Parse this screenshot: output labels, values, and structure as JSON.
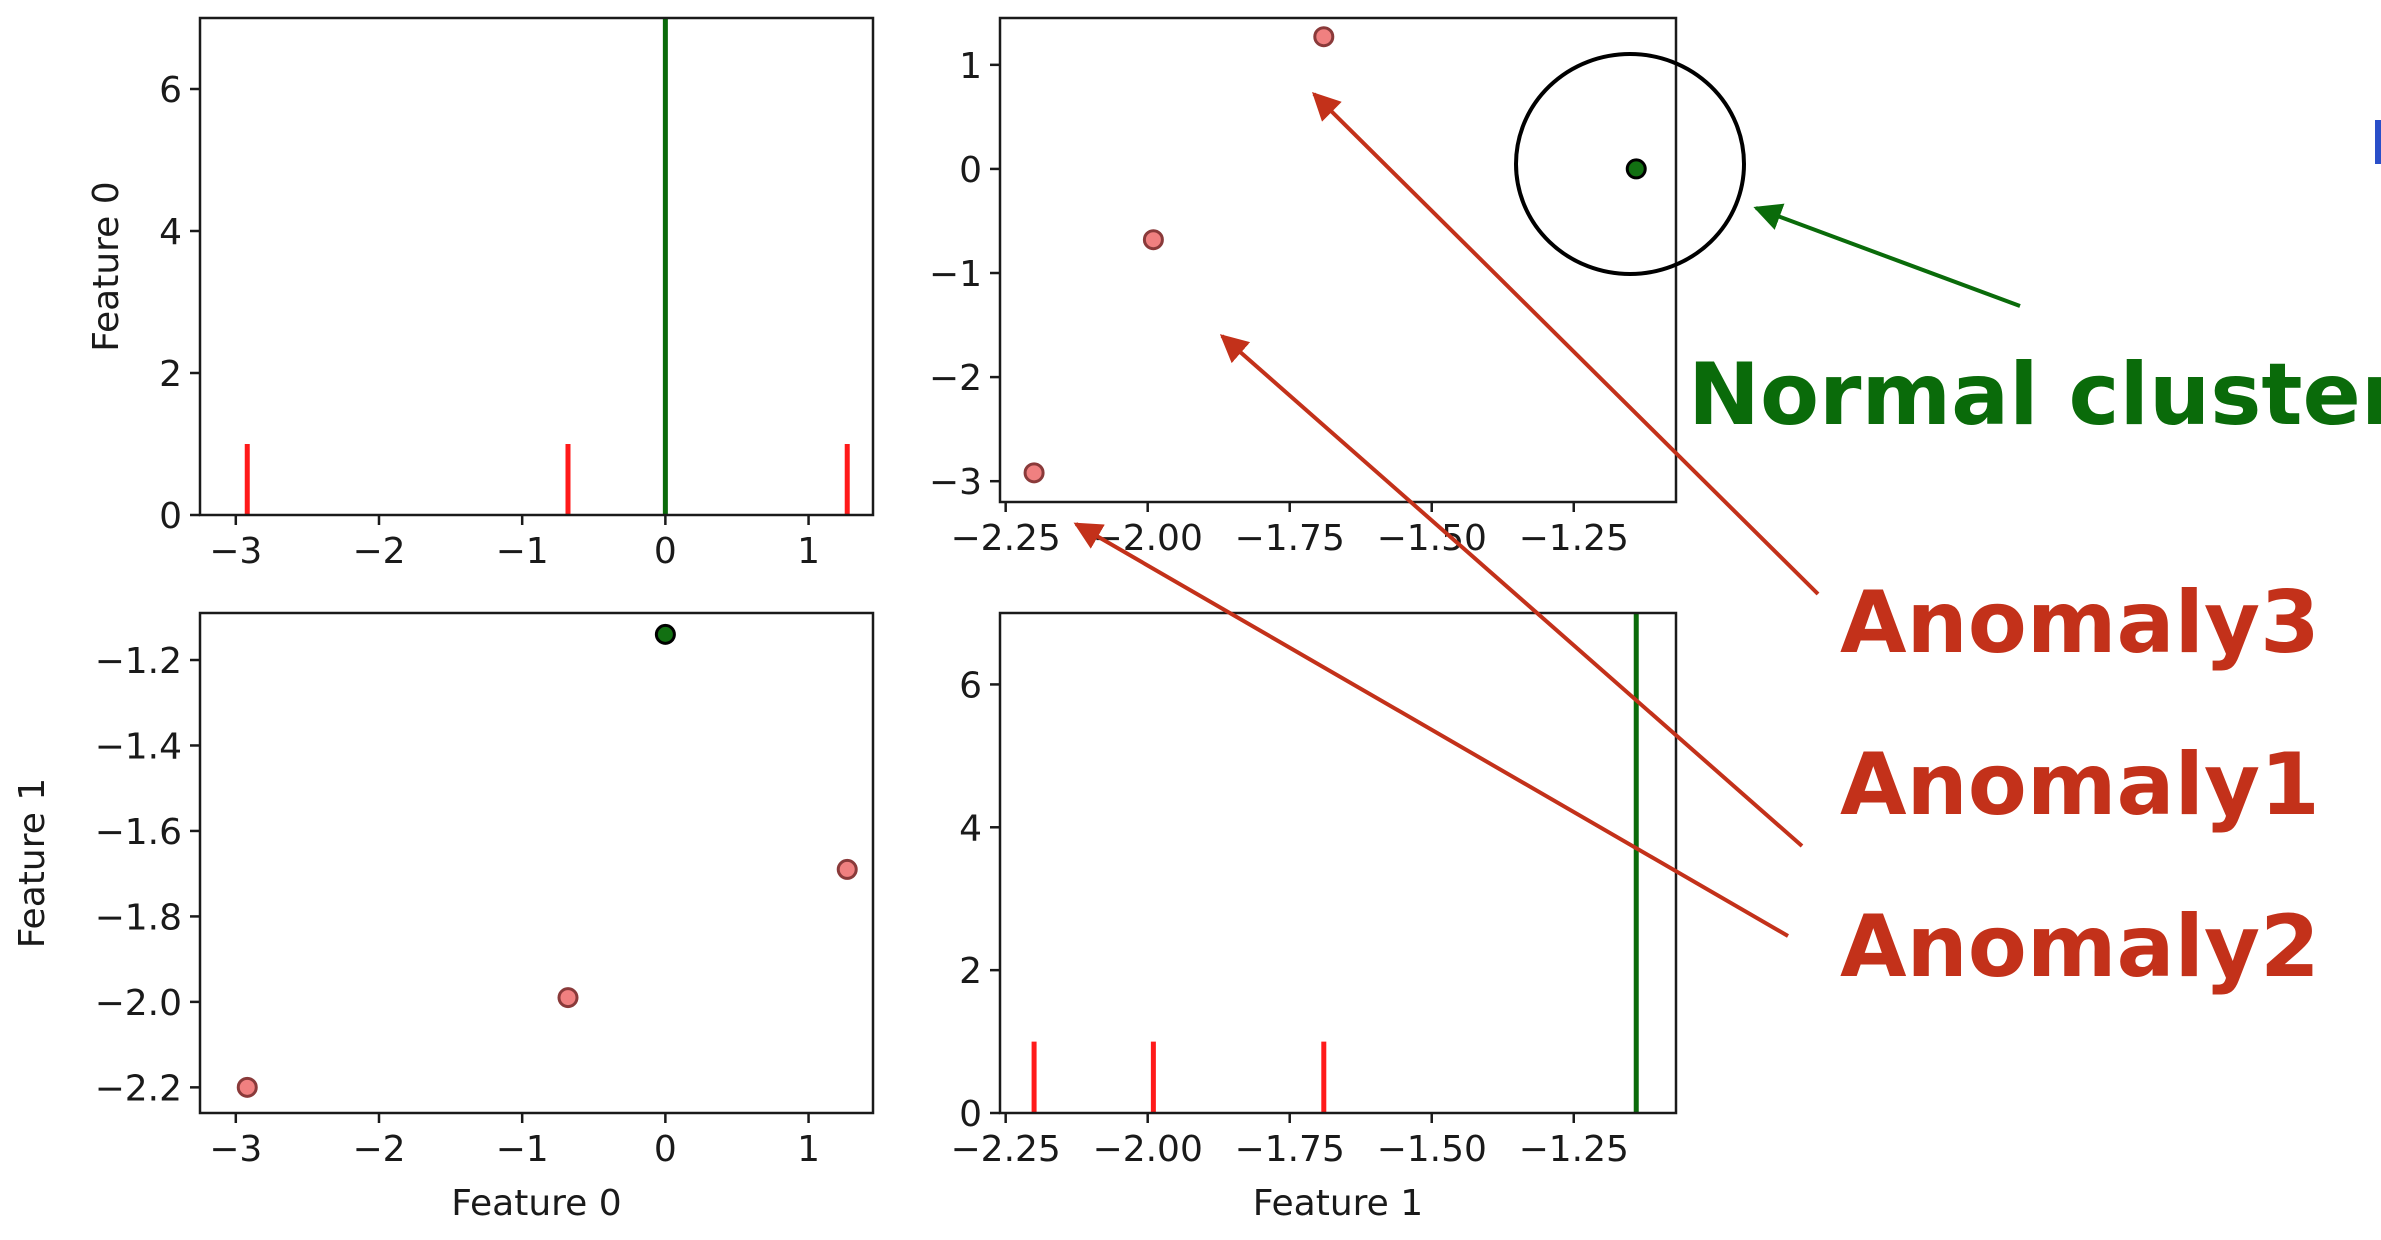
{
  "colors": {
    "normal": "#0a6b0a",
    "normal_fill": "#127012",
    "anomaly_line": "#c3311a",
    "anomaly_fill": "#f08080",
    "axis": "#1a1a1a",
    "arrow_normal": "#0a6b0a",
    "arrow_anomaly": "#c3311a"
  },
  "annotations": {
    "normal_cluster": "Normal cluster",
    "anomaly3": "Anomaly3",
    "anomaly1": "Anomaly1",
    "anomaly2": "Anomaly2"
  },
  "chart_data": [
    {
      "id": "f0-hist",
      "type": "bar",
      "xlabel": "",
      "ylabel": "Feature 0",
      "xlim": [
        -3.25,
        1.45
      ],
      "ylim": [
        0,
        7
      ],
      "xticks": [
        -3,
        -2,
        -1,
        0,
        1
      ],
      "yticks": [
        0,
        2,
        4,
        6
      ],
      "bars": [
        {
          "x": -2.92,
          "value": 1,
          "group": "anomaly"
        },
        {
          "x": -0.68,
          "value": 1,
          "group": "anomaly"
        },
        {
          "x": 1.27,
          "value": 1,
          "group": "anomaly"
        },
        {
          "x": 0.0,
          "value": 7,
          "group": "normal"
        }
      ]
    },
    {
      "id": "f1-vs-f0",
      "type": "scatter",
      "xlabel": "",
      "ylabel": "",
      "xlim": [
        -2.26,
        -1.07
      ],
      "ylim": [
        -3.2,
        1.45
      ],
      "xticks": [
        -2.25,
        -2.0,
        -1.75,
        -1.5,
        -1.25
      ],
      "yticks": [
        -3,
        -2,
        -1,
        0,
        1
      ],
      "points": [
        {
          "x": -2.2,
          "y": -2.92,
          "group": "anomaly"
        },
        {
          "x": -1.99,
          "y": -0.68,
          "group": "anomaly"
        },
        {
          "x": -1.69,
          "y": 1.27,
          "group": "anomaly"
        },
        {
          "x": -1.14,
          "y": 0.0,
          "group": "normal"
        }
      ]
    },
    {
      "id": "f0-vs-f1",
      "type": "scatter",
      "xlabel": "Feature 0",
      "ylabel": "Feature 1",
      "xlim": [
        -3.25,
        1.45
      ],
      "ylim": [
        -2.26,
        -1.09
      ],
      "xticks": [
        -3,
        -2,
        -1,
        0,
        1
      ],
      "yticks": [
        -2.2,
        -2.0,
        -1.8,
        -1.6,
        -1.4,
        -1.2
      ],
      "points": [
        {
          "x": -2.92,
          "y": -2.2,
          "group": "anomaly"
        },
        {
          "x": -0.68,
          "y": -1.99,
          "group": "anomaly"
        },
        {
          "x": 1.27,
          "y": -1.69,
          "group": "anomaly"
        },
        {
          "x": 0.0,
          "y": -1.14,
          "group": "normal"
        }
      ]
    },
    {
      "id": "f1-hist",
      "type": "bar",
      "xlabel": "Feature 1",
      "ylabel": "",
      "xlim": [
        -2.26,
        -1.07
      ],
      "ylim": [
        0,
        7
      ],
      "xticks": [
        -2.25,
        -2.0,
        -1.75,
        -1.5,
        -1.25
      ],
      "yticks": [
        0,
        2,
        4,
        6
      ],
      "bars": [
        {
          "x": -2.2,
          "value": 1,
          "group": "anomaly"
        },
        {
          "x": -1.99,
          "value": 1,
          "group": "anomaly"
        },
        {
          "x": -1.69,
          "value": 1,
          "group": "anomaly"
        },
        {
          "x": -1.14,
          "value": 7,
          "group": "normal"
        }
      ]
    }
  ]
}
